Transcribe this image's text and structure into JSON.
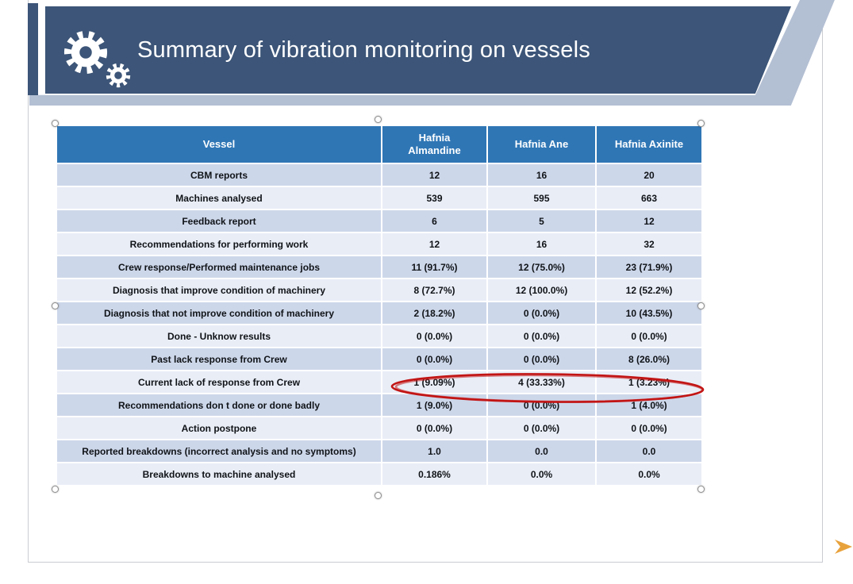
{
  "header": {
    "title": "Summary of vibration monitoring on vessels"
  },
  "icons": {
    "gear_big": "gear-icon",
    "gear_small": "gear-icon",
    "next_arrow": "arrow-right-icon"
  },
  "table": {
    "columns": [
      "Vessel",
      "Hafnia Almandine",
      "Hafnia Ane",
      "Hafnia Axinite"
    ],
    "rows": [
      {
        "label": "CBM reports",
        "values": [
          "12",
          "16",
          "20"
        ]
      },
      {
        "label": "Machines analysed",
        "values": [
          "539",
          "595",
          "663"
        ]
      },
      {
        "label": "Feedback report",
        "values": [
          "6",
          "5",
          "12"
        ]
      },
      {
        "label": "Recommendations for performing work",
        "values": [
          "12",
          "16",
          "32"
        ]
      },
      {
        "label": "Crew response/Performed maintenance jobs",
        "values": [
          "11 (91.7%)",
          "12 (75.0%)",
          "23 (71.9%)"
        ]
      },
      {
        "label": "Diagnosis that improve condition of machinery",
        "values": [
          "8 (72.7%)",
          "12 (100.0%)",
          "12 (52.2%)"
        ]
      },
      {
        "label": "Diagnosis that not improve condition of machinery",
        "values": [
          "2 (18.2%)",
          "0 (0.0%)",
          "10 (43.5%)"
        ]
      },
      {
        "label": "Done - Unknow results",
        "values": [
          "0 (0.0%)",
          "0 (0.0%)",
          "0 (0.0%)"
        ]
      },
      {
        "label": "Past lack response from Crew",
        "values": [
          "0 (0.0%)",
          "0 (0.0%)",
          "8 (26.0%)"
        ]
      },
      {
        "label": "Current lack of response from Crew",
        "values": [
          "1 (9.09%)",
          "4 (33.33%)",
          "1 (3.23%)"
        ],
        "annotated": true
      },
      {
        "label": "Recommendations don t done  or done badly",
        "values": [
          "1 (9.0%)",
          "0 (0.0%)",
          "1 (4.0%)"
        ]
      },
      {
        "label": "Action postpone",
        "values": [
          "0 (0.0%)",
          "0 (0.0%)",
          "0 (0.0%)"
        ]
      },
      {
        "label": "Reported breakdowns (incorrect analysis and no symptoms)",
        "values": [
          "1.0",
          "0.0",
          "0.0"
        ]
      },
      {
        "label": "Breakdowns to machine analysed",
        "values": [
          "0.186%",
          "0.0%",
          "0.0%"
        ]
      }
    ]
  },
  "colors": {
    "banner": "#3C5578",
    "band_light": "#B3BFD3",
    "table_header": "#2F76B5",
    "row_dark": "#CDD7EA",
    "row_light": "#E9EDF6",
    "annotation": "#C21414",
    "arrow": "#E8A23C"
  }
}
